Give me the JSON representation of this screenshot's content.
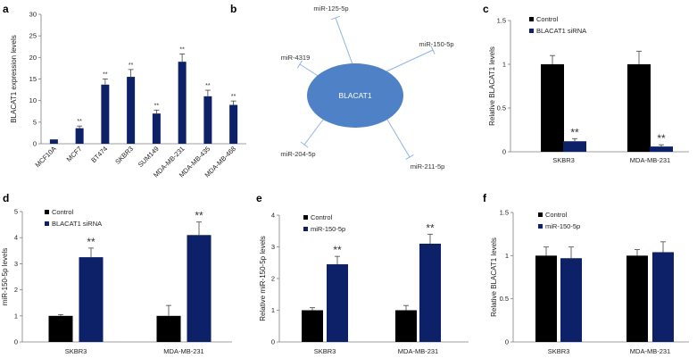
{
  "colors": {
    "black": "#000000",
    "navy": "#0c2168",
    "node": "#4f81c7",
    "tick": "#7f7f7f"
  },
  "panel_b": {
    "label": "b",
    "center": "BLACAT1",
    "targets": [
      "miR-125-5p",
      "miR-150-5p",
      "miR-4319",
      "miR-204-5p",
      "miR-211-5p"
    ]
  },
  "chart_data": [
    {
      "id": "a",
      "label": "a",
      "type": "bar",
      "ylabel": "BLACAT1  expression levels",
      "ylim": [
        0,
        30
      ],
      "yticks": [
        0,
        5,
        10,
        15,
        20,
        25,
        30
      ],
      "categories": [
        "MCF10A",
        "MCF7",
        "BT474",
        "SKBR3",
        "SUM149",
        "MDA-MB-231",
        "MDA-MB-435",
        "MDA-MB-468"
      ],
      "series": [
        {
          "name": "",
          "color": "#0c2168",
          "values": [
            1,
            3.6,
            13.7,
            15.5,
            7,
            19,
            11,
            9
          ],
          "errors": [
            0,
            0.5,
            1.3,
            1.7,
            0.8,
            1.8,
            1.4,
            0.9
          ],
          "sig": [
            "",
            "**",
            "**",
            "**",
            "**",
            "**",
            "**",
            "**"
          ]
        }
      ],
      "legend": []
    },
    {
      "id": "c",
      "label": "c",
      "type": "bar",
      "ylabel": "Relative  BLACAT1  levels",
      "ylim": [
        0,
        1.5
      ],
      "yticks": [
        0,
        0.5,
        1,
        1.5
      ],
      "categories": [
        "SKBR3",
        "MDA-MB-231"
      ],
      "series": [
        {
          "name": "Control",
          "color": "#000000",
          "values": [
            1,
            1
          ],
          "errors": [
            0.1,
            0.15
          ],
          "sig": [
            "",
            ""
          ]
        },
        {
          "name": "BLACAT1 siRNA",
          "color": "#0c2168",
          "values": [
            0.12,
            0.06
          ],
          "errors": [
            0.03,
            0.02
          ],
          "sig": [
            "**",
            "**"
          ]
        }
      ],
      "legend": [
        "Control",
        "BLACAT1 siRNA"
      ]
    },
    {
      "id": "d",
      "label": "d",
      "type": "bar",
      "ylabel": "miR-150-5p  levels",
      "ylim": [
        0,
        5
      ],
      "yticks": [
        0,
        1,
        2,
        3,
        4,
        5
      ],
      "categories": [
        "SKBR3",
        "MDA-MB-231"
      ],
      "series": [
        {
          "name": "Control",
          "color": "#000000",
          "values": [
            1,
            1
          ],
          "errors": [
            0.05,
            0.4
          ],
          "sig": [
            "",
            ""
          ]
        },
        {
          "name": "BLACAT1 siRNA",
          "color": "#0c2168",
          "values": [
            3.25,
            4.1
          ],
          "errors": [
            0.35,
            0.5
          ],
          "sig": [
            "**",
            "**"
          ]
        }
      ],
      "legend": [
        "Control",
        "BLACAT1 siRNA"
      ]
    },
    {
      "id": "e",
      "label": "e",
      "type": "bar",
      "ylabel": "Relative miR-150-5p  levels",
      "ylim": [
        0,
        4
      ],
      "yticks": [
        0,
        1,
        2,
        3,
        4
      ],
      "categories": [
        "SKBR3",
        "MDA-MB-231"
      ],
      "series": [
        {
          "name": "Control",
          "color": "#000000",
          "values": [
            1,
            1
          ],
          "errors": [
            0.08,
            0.15
          ],
          "sig": [
            "",
            ""
          ]
        },
        {
          "name": "miR-150-5p",
          "color": "#0c2168",
          "values": [
            2.45,
            3.1
          ],
          "errors": [
            0.25,
            0.3
          ],
          "sig": [
            "**",
            "**"
          ]
        }
      ],
      "legend": [
        "Control",
        "miR-150-5p"
      ]
    },
    {
      "id": "f",
      "label": "f",
      "type": "bar",
      "ylabel": "Relative  BLACAT1  levels",
      "ylim": [
        0,
        1.5
      ],
      "yticks": [
        0,
        0.5,
        1,
        1.5
      ],
      "categories": [
        "SKBR3",
        "MDA-MB-231"
      ],
      "series": [
        {
          "name": "Control",
          "color": "#000000",
          "values": [
            1,
            1
          ],
          "errors": [
            0.1,
            0.07
          ],
          "sig": [
            "",
            ""
          ]
        },
        {
          "name": "miR-150-5p",
          "color": "#0c2168",
          "values": [
            0.97,
            1.04
          ],
          "errors": [
            0.13,
            0.12
          ],
          "sig": [
            "",
            ""
          ]
        }
      ],
      "legend": [
        "Control",
        "miR-150-5p"
      ]
    }
  ]
}
